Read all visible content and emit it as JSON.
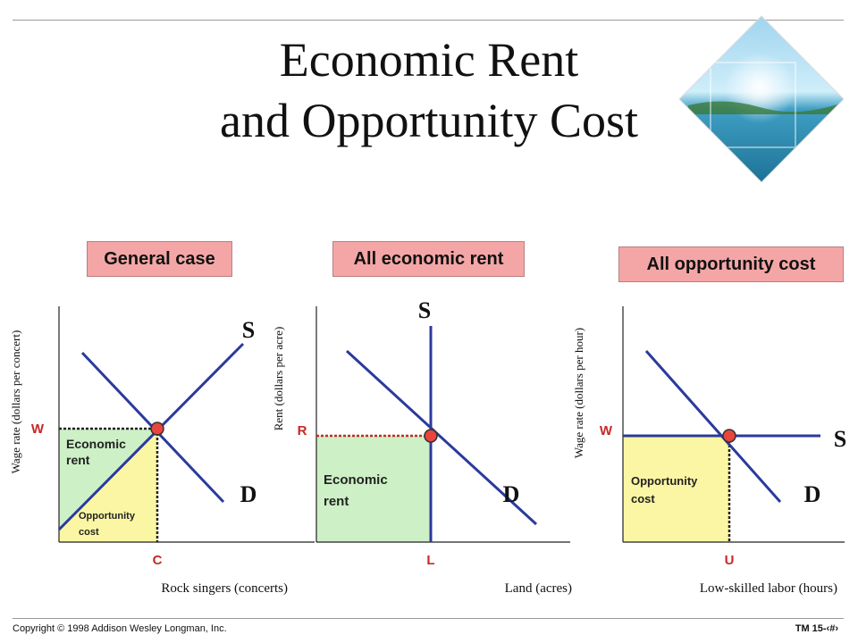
{
  "title_line1": "Economic Rent",
  "title_line2": "and Opportunity Cost",
  "footer": {
    "copyright": "Copyright © 1998 Addison Wesley Longman, Inc.",
    "page": "TM 15-‹#›"
  },
  "colors": {
    "demand": "#2b3a9c",
    "supply": "#2b3a9c",
    "rent_fill": "#cdf0c6",
    "opportunity_fill": "#fbf6a3",
    "marker": "#e8453c",
    "guide": "#c62828",
    "label_box": "#f4a6a6"
  },
  "emblem": "tropical-island-diamond",
  "panels": [
    {
      "name": "general",
      "header": "General case",
      "y_axis_label": "Wage rate (dollars per concert)",
      "x_axis_label": "Rock singers (concerts)",
      "price_label": "W",
      "qty_label": "C",
      "supply_label": "S",
      "demand_label": "D",
      "area_labels": [
        {
          "lines": [
            "Economic",
            "rent"
          ],
          "kind": "economic-rent"
        },
        {
          "lines": [
            "Opportunity",
            "cost"
          ],
          "kind": "opportunity-cost"
        }
      ]
    },
    {
      "name": "all-rent",
      "header": "All economic rent",
      "y_axis_label": "Rent (dollars per acre)",
      "x_axis_label": "Land (acres)",
      "price_label": "R",
      "qty_label": "L",
      "supply_label": "S",
      "demand_label": "D",
      "area_labels": [
        {
          "lines": [
            "Economic",
            "rent"
          ],
          "kind": "economic-rent"
        }
      ]
    },
    {
      "name": "all-opportunity",
      "header": "All opportunity cost",
      "y_axis_label": "Wage rate (dollars per hour)",
      "x_axis_label": "Low-skilled labor (hours)",
      "price_label": "W",
      "qty_label": "U",
      "supply_label": "S",
      "demand_label": "D",
      "area_labels": [
        {
          "lines": [
            "Opportunity",
            "cost"
          ],
          "kind": "opportunity-cost"
        }
      ]
    }
  ]
}
